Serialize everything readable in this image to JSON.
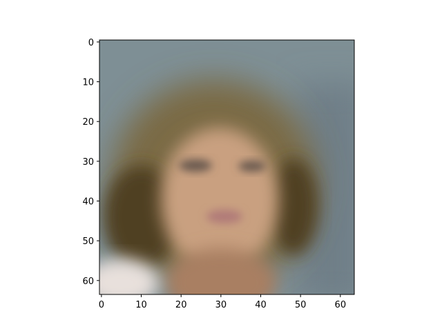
{
  "chart_data": {
    "type": "heatmap",
    "title": "",
    "xlabel": "",
    "ylabel": "",
    "image_shape": [
      64,
      64
    ],
    "xlim": [
      -0.5,
      63.5
    ],
    "ylim": [
      63.5,
      -0.5
    ],
    "x_ticks": [
      0,
      10,
      20,
      30,
      40,
      50,
      60
    ],
    "x_tick_labels": [
      "0",
      "10",
      "20",
      "30",
      "40",
      "50",
      "60"
    ],
    "y_ticks": [
      0,
      10,
      20,
      30,
      40,
      50,
      60
    ],
    "y_tick_labels": [
      "0",
      "10",
      "20",
      "30",
      "40",
      "50",
      "60"
    ],
    "grid": false,
    "legend": "none",
    "colors": {
      "background": "#7e8f95",
      "background_right": "#6f7f88",
      "hair": "#7a6a45",
      "hair_dark": "#4f3f24",
      "skin": "#c9a080",
      "skin_shadow": "#a97f62",
      "eyes": "#6a5a50",
      "lips": "#b07a78",
      "shoulder": "#e8e0dc"
    }
  }
}
